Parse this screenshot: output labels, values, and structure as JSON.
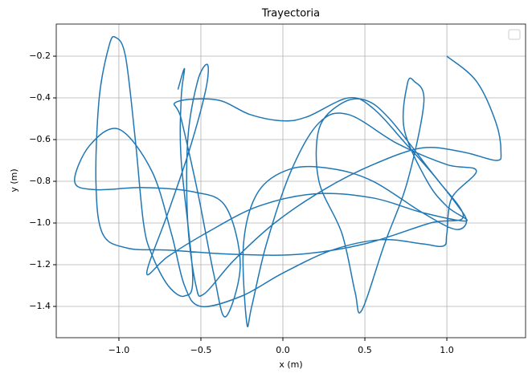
{
  "chart_data": {
    "type": "line",
    "title": "Trayectoria",
    "x_label": "x (m)",
    "y_label": "y (m)",
    "xlim": [
      -1.382,
      1.48
    ],
    "ylim": [
      -1.55,
      -0.046
    ],
    "xticks": [
      {
        "value": -1.0,
        "label": "−1.0"
      },
      {
        "value": -0.5,
        "label": "−0.5"
      },
      {
        "value": 0.0,
        "label": "0.0"
      },
      0.5,
      {
        "value": 1.0,
        "label": "1.0"
      }
    ],
    "yticks": [
      {
        "value": -1.4,
        "label": "−1.4"
      },
      {
        "value": -1.2,
        "label": "−1.2"
      },
      {
        "value": -1.0,
        "label": "−1.0"
      },
      {
        "value": -0.8,
        "label": "−0.8"
      },
      {
        "value": -0.6,
        "label": "−0.6"
      },
      {
        "value": -0.4,
        "label": "−0.4"
      },
      {
        "value": -0.2,
        "label": "−0.2"
      }
    ],
    "grid": true,
    "legend": "upper right",
    "series": [
      {
        "color": "#1f77b4",
        "x": [
          1.0,
          1.18,
          1.3,
          1.33,
          1.3,
          1.1,
          0.85,
          0.55,
          0.25,
          -0.05,
          -0.3,
          -0.48,
          -0.53,
          -0.58,
          -0.58,
          -0.52,
          -0.46,
          -0.47,
          -0.57,
          -0.7,
          -0.83,
          -0.7,
          -0.45,
          -0.15,
          0.2,
          0.55,
          0.85,
          1.12,
          1.0,
          0.88,
          0.74,
          0.76,
          0.8,
          0.86,
          0.76,
          0.62,
          0.48,
          0.44,
          0.36,
          0.22,
          0.22,
          0.35,
          0.5,
          0.65,
          0.9,
          1.05,
          1.12,
          1.05,
          0.85,
          0.55,
          0.3,
          0.05,
          -0.15,
          -0.24,
          -0.22,
          -0.19,
          -0.1,
          0.05,
          0.22,
          0.4,
          0.7,
          1.0,
          1.18,
          1.03,
          1.0,
          0.98,
          0.85,
          0.6,
          0.3,
          0.0,
          -0.25,
          -0.5,
          -0.6,
          -0.68,
          -0.8,
          -1.0,
          -1.18,
          -1.27,
          -1.15,
          -0.85,
          -0.55,
          -0.35,
          -0.26,
          -0.35,
          -0.42,
          -0.52,
          -0.62,
          -0.65,
          -0.4,
          -0.2,
          0.0,
          0.15,
          0.4,
          0.55,
          0.75,
          0.95,
          1.1,
          0.9,
          0.5,
          0.1,
          -0.3,
          -0.7,
          -0.95,
          -1.1,
          -1.14,
          -1.12,
          -1.06,
          -1.02,
          -0.96,
          -0.9,
          -0.85,
          -0.8,
          -0.7,
          -0.6,
          -0.55,
          -0.62,
          -0.62,
          -0.6,
          -0.64
        ],
        "y": [
          -0.2,
          -0.32,
          -0.52,
          -0.66,
          -0.7,
          -0.66,
          -0.64,
          -0.72,
          -0.84,
          -1.0,
          -1.18,
          -1.34,
          -1.3,
          -1.0,
          -0.6,
          -0.32,
          -0.24,
          -0.36,
          -0.65,
          -0.95,
          -1.24,
          -1.16,
          -1.04,
          -0.92,
          -0.86,
          -0.88,
          -0.95,
          -0.99,
          -0.92,
          -0.8,
          -0.55,
          -0.33,
          -0.32,
          -0.42,
          -0.8,
          -1.1,
          -1.42,
          -1.33,
          -1.05,
          -0.8,
          -0.55,
          -0.43,
          -0.41,
          -0.5,
          -0.75,
          -0.9,
          -0.99,
          -1.03,
          -0.95,
          -0.8,
          -0.74,
          -0.74,
          -0.85,
          -1.1,
          -1.48,
          -1.4,
          -1.1,
          -0.75,
          -0.52,
          -0.48,
          -0.62,
          -0.72,
          -0.75,
          -0.88,
          -1.05,
          -1.11,
          -1.1,
          -1.08,
          -1.13,
          -1.24,
          -1.35,
          -1.4,
          -1.3,
          -1.05,
          -0.75,
          -0.55,
          -0.63,
          -0.8,
          -0.84,
          -0.83,
          -0.85,
          -0.92,
          -1.2,
          -1.45,
          -1.25,
          -0.85,
          -0.5,
          -0.42,
          -0.41,
          -0.48,
          -0.51,
          -0.49,
          -0.4,
          -0.45,
          -0.62,
          -0.8,
          -0.97,
          -1.0,
          -1.1,
          -1.15,
          -1.15,
          -1.13,
          -1.12,
          -1.05,
          -0.8,
          -0.4,
          -0.15,
          -0.11,
          -0.2,
          -0.6,
          -1.0,
          -1.15,
          -1.3,
          -1.35,
          -1.25,
          -0.7,
          -0.4,
          -0.26,
          -0.36
        ]
      }
    ]
  }
}
